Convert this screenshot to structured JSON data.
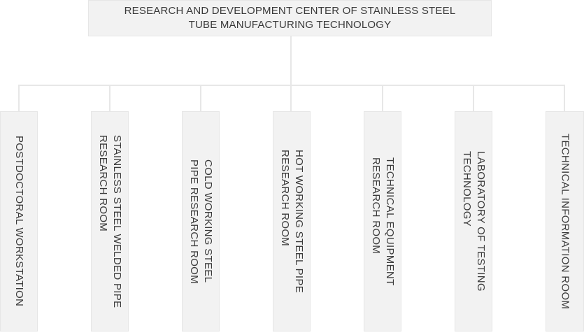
{
  "diagram": {
    "root": {
      "label": "RESEARCH AND DEVELOPMENT CENTER OF STAINLESS STEEL\nTUBE MANUFACTURING TECHNOLOGY"
    },
    "departments": [
      {
        "label": "POSTDOCTORAL WORKSTATION"
      },
      {
        "label": "STAINLESS STEEL WELDED PIPE\nRESEARCH ROOM"
      },
      {
        "label": "COLD WORKING STEEL\nPIPE RESEARCH ROOM"
      },
      {
        "label": "HOT WORKING STEEL PIPE\nRESEARCH ROOM"
      },
      {
        "label": "TECHNICAL EQUIPMENT\nRESEARCH ROOM"
      },
      {
        "label": "LABORATORY OF TESTING\nTECHNOLOGY"
      },
      {
        "label": "TECHNICAL INFORMATION ROOM"
      }
    ],
    "colors": {
      "box_fill": "#f2f2f2",
      "box_border": "#e6e6e6",
      "connector_line": "#e7e7e7",
      "text": "#3a3a3a",
      "background": "#ffffff"
    }
  }
}
